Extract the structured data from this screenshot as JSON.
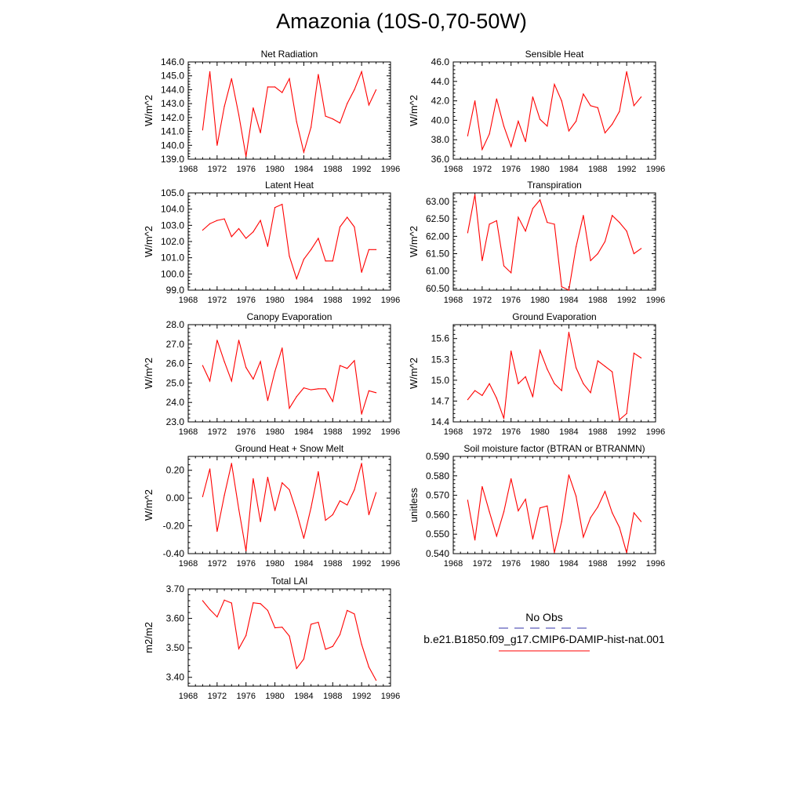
{
  "figure": {
    "title": "Amazonia (10S-0,70-50W)",
    "line_color": "#ff0000",
    "obs_color": "#3333aa"
  },
  "legend": {
    "obs_label": "No Obs",
    "model_label": "b.e21.B1850.f09_g17.CMIP6-DAMIP-hist-nat.001"
  },
  "chart_data": [
    {
      "type": "line",
      "title": "Net Radiation",
      "xlabel": "",
      "ylabel": "W/m^2",
      "xlim": [
        1968,
        1996
      ],
      "ylim": [
        139,
        146
      ],
      "xticks": [
        "1968",
        "1972",
        "1976",
        "1980",
        "1984",
        "1988",
        "1992",
        "1996"
      ],
      "yticks": [
        "139.0",
        "140.0",
        "141.0",
        "142.0",
        "143.0",
        "144.0",
        "145.0",
        "146.0"
      ],
      "x": [
        1970,
        1971,
        1972,
        1973,
        1974,
        1975,
        1976,
        1977,
        1978,
        1979,
        1980,
        1981,
        1982,
        1983,
        1984,
        1985,
        1986,
        1987,
        1988,
        1989,
        1990,
        1991,
        1992,
        1993,
        1994
      ],
      "series": [
        {
          "values": [
            141.1,
            145.3,
            140.0,
            142.8,
            144.8,
            142.2,
            139.2,
            142.7,
            140.9,
            144.2,
            144.2,
            143.8,
            144.8,
            141.7,
            139.5,
            141.3,
            145.1,
            142.1,
            141.9,
            141.6,
            143.0,
            144.0,
            145.3,
            142.9,
            144.0
          ]
        }
      ]
    },
    {
      "type": "line",
      "title": "Sensible Heat",
      "xlabel": "",
      "ylabel": "W/m^2",
      "xlim": [
        1968,
        1996
      ],
      "ylim": [
        36,
        46
      ],
      "xticks": [
        "1968",
        "1972",
        "1976",
        "1980",
        "1984",
        "1988",
        "1992",
        "1996"
      ],
      "yticks": [
        "36.0",
        "38.0",
        "40.0",
        "42.0",
        "44.0",
        "46.0"
      ],
      "x": [
        1970,
        1971,
        1972,
        1973,
        1974,
        1975,
        1976,
        1977,
        1978,
        1979,
        1980,
        1981,
        1982,
        1983,
        1984,
        1985,
        1986,
        1987,
        1988,
        1989,
        1990,
        1991,
        1992,
        1993,
        1994
      ],
      "series": [
        {
          "values": [
            38.4,
            42.0,
            37.0,
            38.6,
            42.2,
            39.4,
            37.3,
            39.9,
            37.8,
            42.4,
            40.1,
            39.4,
            43.7,
            42.0,
            38.9,
            39.9,
            42.7,
            41.5,
            41.3,
            38.7,
            39.6,
            40.9,
            45.0,
            41.5,
            42.4
          ]
        }
      ]
    },
    {
      "type": "line",
      "title": "Latent Heat",
      "xlabel": "",
      "ylabel": "W/m^2",
      "xlim": [
        1968,
        1996
      ],
      "ylim": [
        99,
        105
      ],
      "xticks": [
        "1968",
        "1972",
        "1976",
        "1980",
        "1984",
        "1988",
        "1992",
        "1996"
      ],
      "yticks": [
        "99.0",
        "100.0",
        "101.0",
        "102.0",
        "103.0",
        "104.0",
        "105.0"
      ],
      "x": [
        1970,
        1971,
        1972,
        1973,
        1974,
        1975,
        1976,
        1977,
        1978,
        1979,
        1980,
        1981,
        1982,
        1983,
        1984,
        1985,
        1986,
        1987,
        1988,
        1989,
        1990,
        1991,
        1992,
        1993,
        1994
      ],
      "series": [
        {
          "values": [
            102.7,
            103.1,
            103.3,
            103.4,
            102.3,
            102.8,
            102.2,
            102.6,
            103.3,
            101.7,
            104.1,
            104.3,
            101.1,
            99.7,
            100.9,
            101.5,
            102.2,
            100.8,
            100.8,
            102.9,
            103.5,
            102.9,
            100.1,
            101.5,
            101.5
          ]
        }
      ]
    },
    {
      "type": "line",
      "title": "Transpiration",
      "xlabel": "",
      "ylabel": "W/m^2",
      "xlim": [
        1968,
        1996
      ],
      "ylim": [
        60.45,
        63.25
      ],
      "xticks": [
        "1968",
        "1972",
        "1976",
        "1980",
        "1984",
        "1988",
        "1992",
        "1996"
      ],
      "yticks": [
        "60.50",
        "61.00",
        "61.50",
        "62.00",
        "62.50",
        "63.00"
      ],
      "x": [
        1970,
        1971,
        1972,
        1973,
        1974,
        1975,
        1976,
        1977,
        1978,
        1979,
        1980,
        1981,
        1982,
        1983,
        1984,
        1985,
        1986,
        1987,
        1988,
        1989,
        1990,
        1991,
        1992,
        1993,
        1994
      ],
      "series": [
        {
          "values": [
            62.1,
            63.2,
            61.3,
            62.35,
            62.45,
            61.15,
            60.95,
            62.55,
            62.15,
            62.8,
            63.05,
            62.4,
            62.35,
            60.55,
            60.45,
            61.7,
            62.6,
            61.3,
            61.5,
            61.85,
            62.6,
            62.4,
            62.15,
            61.5,
            61.65
          ]
        }
      ]
    },
    {
      "type": "line",
      "title": "Canopy Evaporation",
      "xlabel": "",
      "ylabel": "W/m^2",
      "xlim": [
        1968,
        1996
      ],
      "ylim": [
        23,
        28
      ],
      "xticks": [
        "1968",
        "1972",
        "1976",
        "1980",
        "1984",
        "1988",
        "1992",
        "1996"
      ],
      "yticks": [
        "23.0",
        "24.0",
        "25.0",
        "26.0",
        "27.0",
        "28.0"
      ],
      "x": [
        1970,
        1971,
        1972,
        1973,
        1974,
        1975,
        1976,
        1977,
        1978,
        1979,
        1980,
        1981,
        1982,
        1983,
        1984,
        1985,
        1986,
        1987,
        1988,
        1989,
        1990,
        1991,
        1992,
        1993,
        1994
      ],
      "series": [
        {
          "values": [
            25.9,
            25.1,
            27.2,
            26.1,
            25.1,
            27.2,
            25.8,
            25.2,
            26.1,
            24.1,
            25.6,
            26.8,
            23.7,
            24.3,
            24.75,
            24.65,
            24.7,
            24.7,
            24.05,
            25.9,
            25.75,
            26.15,
            23.4,
            24.6,
            24.5
          ]
        }
      ]
    },
    {
      "type": "line",
      "title": "Ground Evaporation",
      "xlabel": "",
      "ylabel": "W/m^2",
      "xlim": [
        1968,
        1996
      ],
      "ylim": [
        14.4,
        15.8
      ],
      "xticks": [
        "1968",
        "1972",
        "1976",
        "1980",
        "1984",
        "1988",
        "1992",
        "1996"
      ],
      "yticks": [
        "14.4",
        "14.7",
        "15.0",
        "15.3",
        "15.6"
      ],
      "x": [
        1970,
        1971,
        1972,
        1973,
        1974,
        1975,
        1976,
        1977,
        1978,
        1979,
        1980,
        1981,
        1982,
        1983,
        1984,
        1985,
        1986,
        1987,
        1988,
        1989,
        1990,
        1991,
        1992,
        1993,
        1994
      ],
      "series": [
        {
          "values": [
            14.72,
            14.85,
            14.78,
            14.95,
            14.74,
            14.45,
            15.42,
            14.95,
            15.05,
            14.76,
            15.43,
            15.16,
            14.95,
            14.85,
            15.69,
            15.18,
            14.95,
            14.82,
            15.28,
            15.2,
            15.12,
            14.43,
            14.52,
            15.39,
            15.32
          ]
        }
      ]
    },
    {
      "type": "line",
      "title": "Ground Heat + Snow Melt",
      "xlabel": "",
      "ylabel": "W/m^2",
      "xlim": [
        1968,
        1996
      ],
      "ylim": [
        -0.4,
        0.3
      ],
      "xticks": [
        "1968",
        "1972",
        "1976",
        "1980",
        "1984",
        "1988",
        "1992",
        "1996"
      ],
      "yticks": [
        "-0.40",
        "-0.20",
        "0.00",
        "0.20"
      ],
      "x": [
        1970,
        1971,
        1972,
        1973,
        1974,
        1975,
        1976,
        1977,
        1978,
        1979,
        1980,
        1981,
        1982,
        1983,
        1984,
        1985,
        1986,
        1987,
        1988,
        1989,
        1990,
        1991,
        1992,
        1993,
        1994
      ],
      "series": [
        {
          "values": [
            0.01,
            0.21,
            -0.24,
            0.02,
            0.25,
            -0.08,
            -0.38,
            0.14,
            -0.17,
            0.15,
            -0.09,
            0.11,
            0.06,
            -0.1,
            -0.29,
            -0.07,
            0.19,
            -0.16,
            -0.12,
            -0.02,
            -0.05,
            0.06,
            0.25,
            -0.12,
            0.04
          ]
        }
      ]
    },
    {
      "type": "line",
      "title": "Soil moisture factor (BTRAN or BTRANMN)",
      "xlabel": "",
      "ylabel": "unitless",
      "xlim": [
        1968,
        1996
      ],
      "ylim": [
        0.54,
        0.59
      ],
      "xticks": [
        "1968",
        "1972",
        "1976",
        "1980",
        "1984",
        "1988",
        "1992",
        "1996"
      ],
      "yticks": [
        "0.540",
        "0.550",
        "0.560",
        "0.570",
        "0.580",
        "0.590"
      ],
      "x": [
        1970,
        1971,
        1972,
        1973,
        1974,
        1975,
        1976,
        1977,
        1978,
        1979,
        1980,
        1981,
        1982,
        1983,
        1984,
        1985,
        1986,
        1987,
        1988,
        1989,
        1990,
        1991,
        1992,
        1993,
        1994
      ],
      "series": [
        {
          "values": [
            0.5675,
            0.547,
            0.5745,
            0.5615,
            0.549,
            0.5615,
            0.5785,
            0.562,
            0.568,
            0.5475,
            0.5635,
            0.5645,
            0.5405,
            0.5565,
            0.5805,
            0.5695,
            0.5485,
            0.5585,
            0.564,
            0.572,
            0.561,
            0.5535,
            0.5405,
            0.561,
            0.5565
          ]
        }
      ]
    },
    {
      "type": "line",
      "title": "Total LAI",
      "xlabel": "",
      "ylabel": "m2/m2",
      "xlim": [
        1968,
        1996
      ],
      "ylim": [
        3.37,
        3.7
      ],
      "xticks": [
        "1968",
        "1972",
        "1976",
        "1980",
        "1984",
        "1988",
        "1992",
        "1996"
      ],
      "yticks": [
        "3.40",
        "3.50",
        "3.60",
        "3.70"
      ],
      "x": [
        1970,
        1971,
        1972,
        1973,
        1974,
        1975,
        1976,
        1977,
        1978,
        1979,
        1980,
        1981,
        1982,
        1983,
        1984,
        1985,
        1986,
        1987,
        1988,
        1989,
        1990,
        1991,
        1992,
        1993,
        1994
      ],
      "series": [
        {
          "values": [
            3.66,
            3.63,
            3.605,
            3.662,
            3.652,
            3.497,
            3.542,
            3.653,
            3.65,
            3.627,
            3.568,
            3.57,
            3.54,
            3.43,
            3.462,
            3.58,
            3.587,
            3.495,
            3.505,
            3.545,
            3.627,
            3.615,
            3.512,
            3.435,
            3.39
          ]
        }
      ]
    }
  ]
}
